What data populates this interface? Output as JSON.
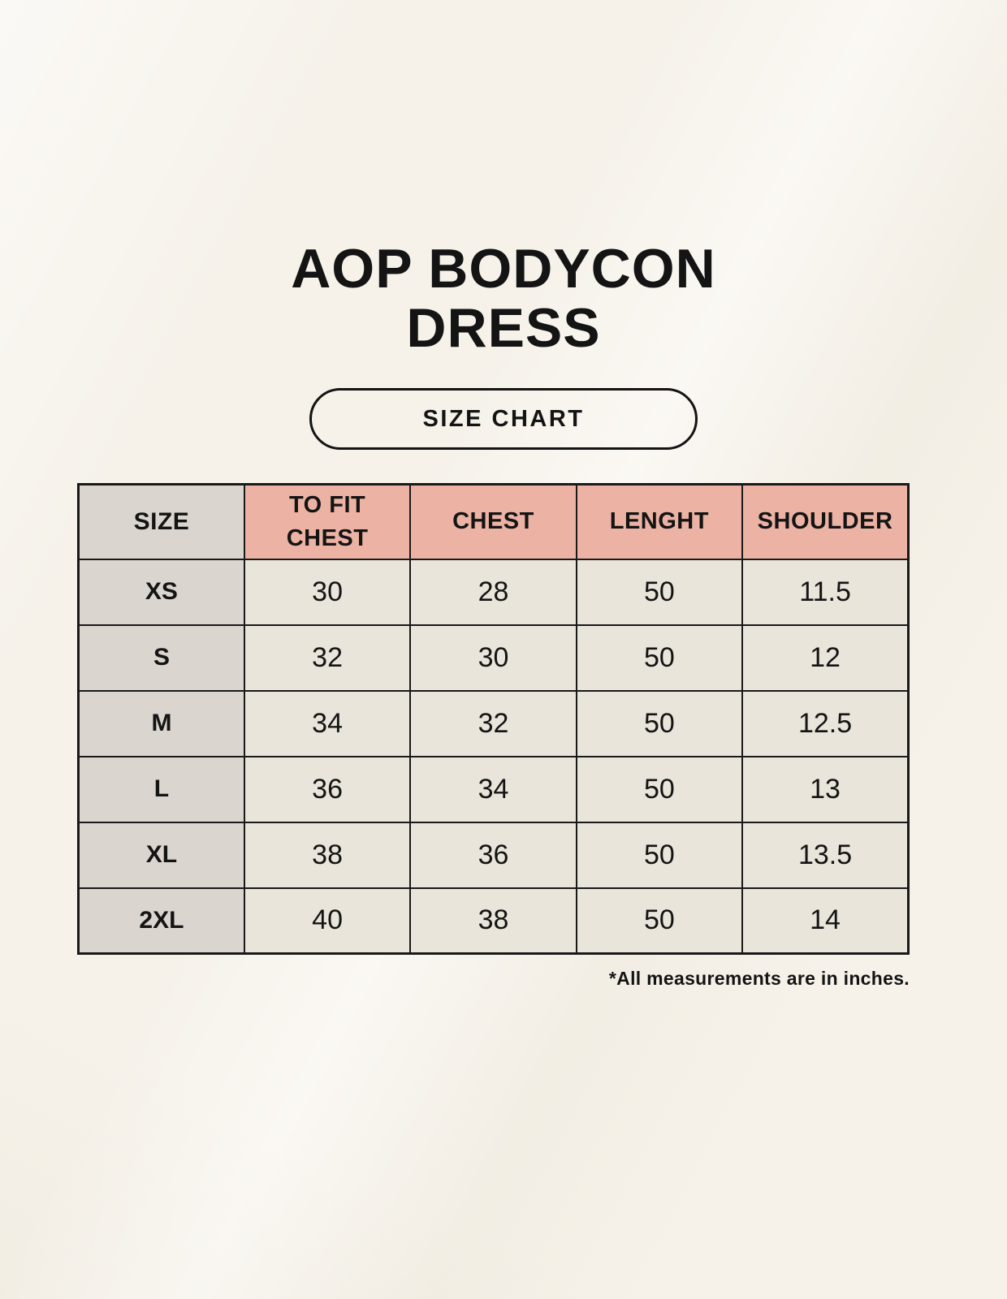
{
  "header": {
    "title_line1": "AOP BODYCON",
    "title_line2": "DRESS",
    "badge_label": "SIZE CHART"
  },
  "chart_data": {
    "type": "table",
    "title": "AOP BODYCON DRESS",
    "subtitle": "SIZE CHART",
    "columns": [
      "SIZE",
      "TO FIT CHEST",
      "CHEST",
      "LENGHT",
      "SHOULDER"
    ],
    "rows": [
      [
        "XS",
        "30",
        "28",
        "50",
        "11.5"
      ],
      [
        "S",
        "32",
        "30",
        "50",
        "12"
      ],
      [
        "M",
        "34",
        "32",
        "50",
        "12.5"
      ],
      [
        "L",
        "36",
        "34",
        "50",
        "13"
      ],
      [
        "XL",
        "38",
        "36",
        "50",
        "13.5"
      ],
      [
        "2XL",
        "40",
        "38",
        "50",
        "14"
      ]
    ],
    "units": "inches"
  },
  "footer": {
    "note": "*All measurements are in inches."
  },
  "colors": {
    "background": "#f6f2ea",
    "header_accent": "#ecb3a4",
    "size_column": "#dad5cf",
    "cell_background": "#eae5da",
    "border": "#191919",
    "text": "#141414"
  }
}
